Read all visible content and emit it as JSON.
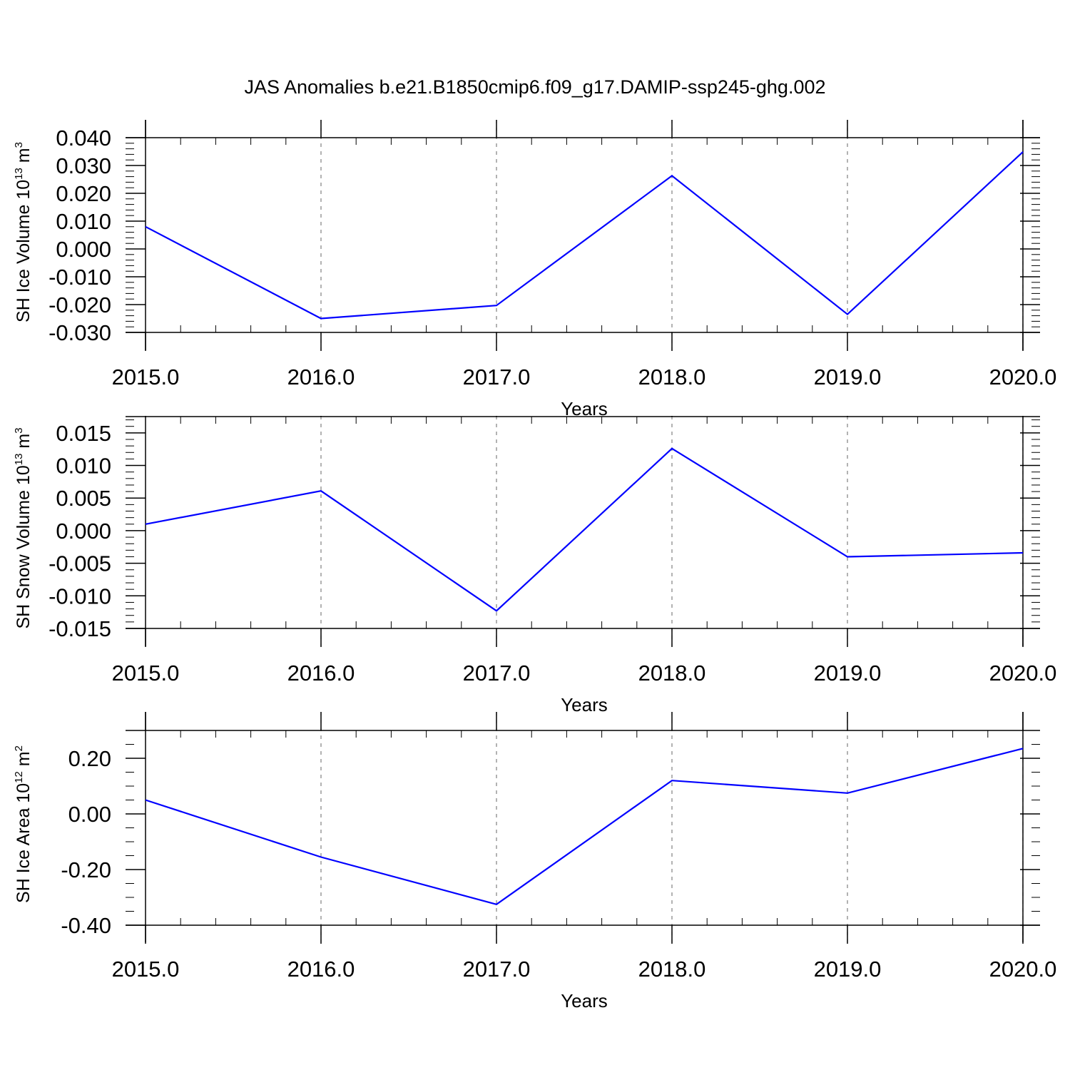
{
  "figure_title": "JAS Anomalies b.e21.B1850cmip6.f09_g17.DAMIP-ssp245-ghg.002",
  "colors": {
    "line": "#0000ff",
    "axes": "#000000",
    "grid": "#808080"
  },
  "chart_data": [
    {
      "type": "line",
      "title": "",
      "xlabel": "Years",
      "ylabel_base": "SH Ice Volume 10",
      "ylabel_exp": "13",
      "ylabel_unit": " m",
      "ylabel_unit_exp": "3",
      "x": [
        2015,
        2016,
        2017,
        2018,
        2019,
        2020
      ],
      "values": [
        0.008,
        -0.025,
        -0.0203,
        0.0263,
        -0.0235,
        0.0349
      ],
      "xlim": [
        2015,
        2020.1
      ],
      "ylim": [
        -0.03,
        0.04
      ],
      "yticks": [
        -0.03,
        -0.02,
        -0.01,
        0.0,
        0.01,
        0.02,
        0.03,
        0.04
      ],
      "ytick_labels": [
        "-0.030",
        "-0.020",
        "-0.010",
        "0.000",
        "0.010",
        "0.020",
        "0.030",
        "0.040"
      ],
      "ytick_minor": 0.002,
      "xticks": [
        2015,
        2016,
        2017,
        2018,
        2019,
        2020
      ],
      "xtick_labels": [
        "2015.0",
        "2016.0",
        "2017.0",
        "2018.0",
        "2019.0",
        "2020.0"
      ],
      "xtick_minor": 0.2,
      "grid": "dashed vertical at major x ticks"
    },
    {
      "type": "line",
      "title": "",
      "xlabel": "Years",
      "ylabel_base": "SH Snow Volume 10",
      "ylabel_exp": "13",
      "ylabel_unit": " m",
      "ylabel_unit_exp": "3",
      "x": [
        2015,
        2016,
        2017,
        2018,
        2019,
        2020
      ],
      "values": [
        0.001,
        0.0061,
        -0.0123,
        0.0126,
        -0.004,
        -0.0034
      ],
      "xlim": [
        2015,
        2020.1
      ],
      "ylim": [
        -0.015,
        0.0175
      ],
      "yticks": [
        -0.015,
        -0.01,
        -0.005,
        0.0,
        0.005,
        0.01,
        0.015
      ],
      "ytick_labels": [
        "-0.015",
        "-0.010",
        "-0.005",
        "0.000",
        "0.005",
        "0.010",
        "0.015"
      ],
      "ytick_minor": 0.001,
      "xticks": [
        2015,
        2016,
        2017,
        2018,
        2019,
        2020
      ],
      "xtick_labels": [
        "2015.0",
        "2016.0",
        "2017.0",
        "2018.0",
        "2019.0",
        "2020.0"
      ],
      "xtick_minor": 0.2,
      "grid": "dashed vertical at major x ticks"
    },
    {
      "type": "line",
      "title": "",
      "xlabel": "Years",
      "ylabel_base": "SH Ice Area 10",
      "ylabel_exp": "12",
      "ylabel_unit": " m",
      "ylabel_unit_exp": "2",
      "x": [
        2015,
        2016,
        2017,
        2018,
        2019,
        2020
      ],
      "values": [
        0.05,
        -0.155,
        -0.325,
        0.12,
        0.075,
        0.235
      ],
      "xlim": [
        2015,
        2020.1
      ],
      "ylim": [
        -0.4,
        0.3
      ],
      "yticks": [
        -0.4,
        -0.2,
        0.0,
        0.2
      ],
      "ytick_labels": [
        "-0.40",
        "-0.20",
        "0.00",
        "0.20"
      ],
      "ytick_minor": 0.05,
      "xticks": [
        2015,
        2016,
        2017,
        2018,
        2019,
        2020
      ],
      "xtick_labels": [
        "2015.0",
        "2016.0",
        "2017.0",
        "2018.0",
        "2019.0",
        "2020.0"
      ],
      "xtick_minor": 0.2,
      "grid": "dashed vertical at major x ticks"
    }
  ]
}
